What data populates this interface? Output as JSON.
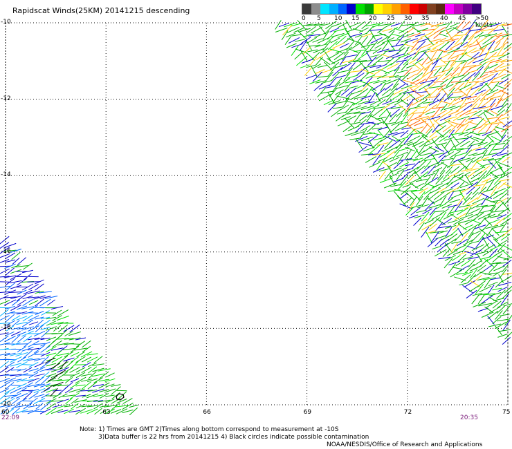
{
  "title": "Rapidscat Winds(25KM) 20141215 descending",
  "legend": {
    "colors": [
      "#3a3a3a",
      "#8c8c8c",
      "#00e5ff",
      "#00b0ff",
      "#0064ff",
      "#0000cc",
      "#00e000",
      "#00a000",
      "#ffff00",
      "#ffd200",
      "#ffa000",
      "#ff6000",
      "#ff0000",
      "#cc0000",
      "#804020",
      "#5a2a10",
      "#ff00ff",
      "#c000c0",
      "#8000a0",
      "#400080"
    ],
    "labels": [
      "0",
      "5",
      "10",
      "15",
      "20",
      "25",
      "30",
      "35",
      "40",
      "45",
      ">50 knots"
    ]
  },
  "lat_labels": [
    "-10",
    "-12",
    "-14",
    "-16",
    "-18",
    "-20"
  ],
  "lon_labels": [
    "60",
    "63",
    "66",
    "69",
    "72",
    "75"
  ],
  "times": {
    "left": "22:09",
    "right": "20:35"
  },
  "notes": {
    "line1": "Note: 1) Times are GMT  2)Times along bottom correspond to measurement at -10S",
    "line2": "3)Data buffer is 22 hrs from 20141215  4) Black circles indicate possible contamination",
    "line3": "NOAA/NESDIS/Office of Research and Applications"
  }
}
